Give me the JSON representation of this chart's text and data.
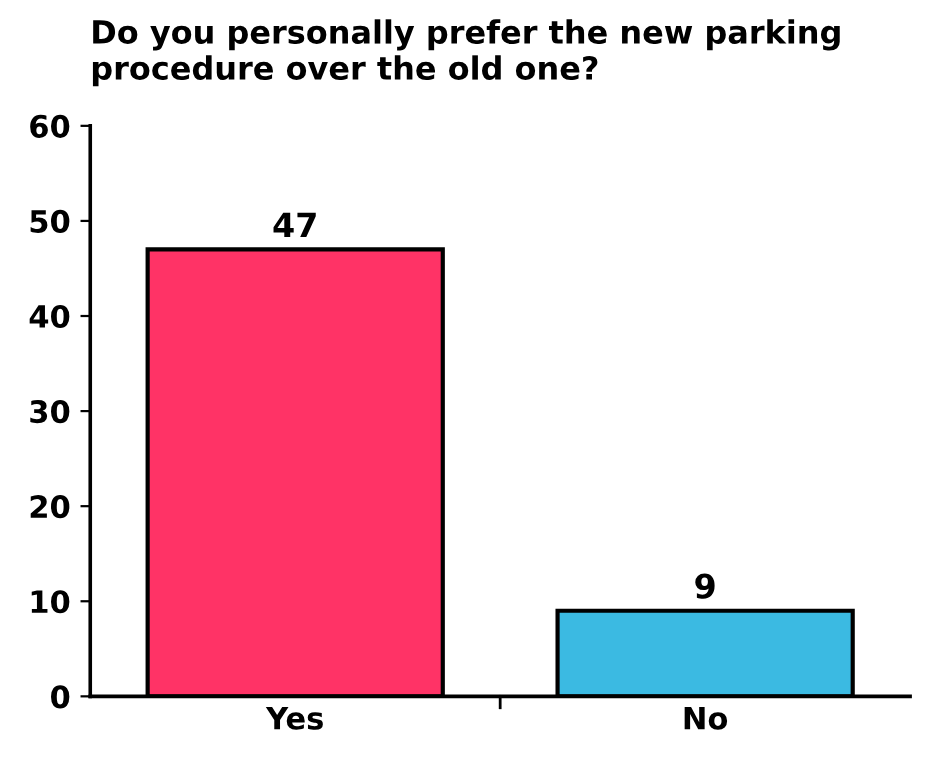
{
  "chart_data": {
    "type": "bar",
    "title": "Do you personally prefer the new parking procedure over the old one?",
    "categories": [
      "Yes",
      "No"
    ],
    "values": [
      47,
      9
    ],
    "colors": [
      "#ff3366",
      "#3bbae2"
    ],
    "ylim": [
      0,
      60
    ],
    "yticks": [
      0,
      10,
      20,
      30,
      40,
      50,
      60
    ],
    "data_labels": true,
    "grid": false
  }
}
